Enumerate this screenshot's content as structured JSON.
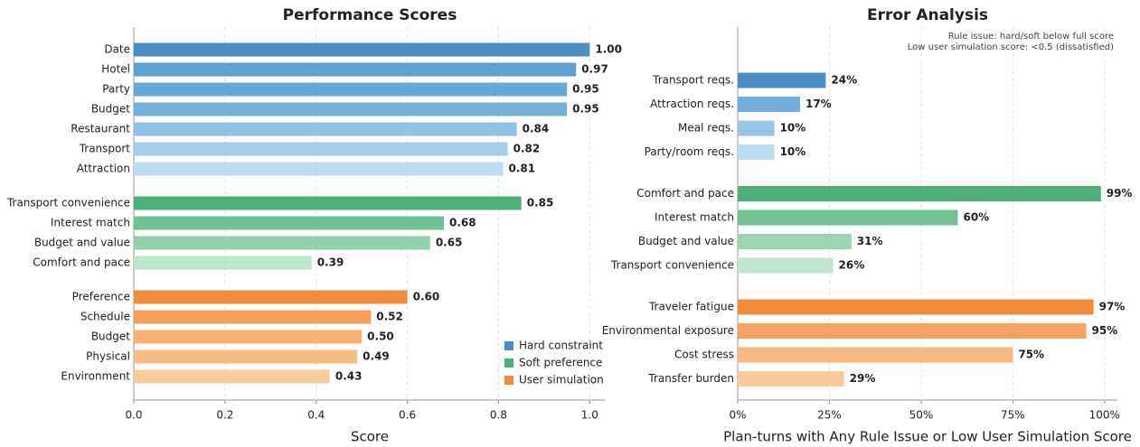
{
  "chart_data": [
    {
      "type": "bar",
      "orientation": "horizontal",
      "title": "Performance Scores",
      "xlabel": "Score",
      "xlim": [
        0,
        1.035
      ],
      "xticks": [
        {
          "value": 0,
          "label": "0.0"
        },
        0.2,
        0.4,
        0.6,
        0.8,
        {
          "value": 1,
          "label": "1.0"
        }
      ],
      "grid": true,
      "legend": "lower right",
      "groups": [
        {
          "name": "Hard constraint",
          "color": "#4a8ec6",
          "categories": [
            "Date",
            "Hotel",
            "Party",
            "Budget",
            "Restaurant",
            "Transport",
            "Attraction"
          ],
          "values": [
            1.0,
            0.97,
            0.95,
            0.95,
            0.84,
            0.82,
            0.81
          ],
          "value_labels": [
            "1.00",
            "0.97",
            "0.95",
            "0.95",
            "0.84",
            "0.82",
            "0.81"
          ],
          "colors": [
            "#4a8ec6",
            "#5f9fd1",
            "#6aa8d6",
            "#74b0da",
            "#92c2e3",
            "#a5cce8",
            "#bcdcf0"
          ]
        },
        {
          "name": "Soft preference",
          "color": "#4caf78",
          "categories": [
            "Transport convenience",
            "Interest match",
            "Budget and value",
            "Comfort and pace"
          ],
          "values": [
            0.85,
            0.68,
            0.65,
            0.39
          ],
          "value_labels": [
            "0.85",
            "0.68",
            "0.65",
            "0.39"
          ],
          "colors": [
            "#4caf78",
            "#6fc393",
            "#92d2aa",
            "#bde6cc"
          ]
        },
        {
          "name": "User simulation",
          "color": "#f08c3c",
          "categories": [
            "Preference",
            "Schedule",
            "Budget",
            "Physical",
            "Environment"
          ],
          "values": [
            0.6,
            0.52,
            0.5,
            0.49,
            0.43
          ],
          "value_labels": [
            "0.60",
            "0.52",
            "0.50",
            "0.49",
            "0.43"
          ],
          "colors": [
            "#f08c3c",
            "#f2a05a",
            "#f4b173",
            "#f6be87",
            "#f8cd9c"
          ]
        }
      ]
    },
    {
      "type": "bar",
      "orientation": "horizontal",
      "title": "Error Analysis",
      "xlabel": "Plan-turns with Any Rule Issue or Low User Simulation Score",
      "annotations": [
        "Rule issue: hard/soft below full score",
        "Low user simulation score: <0.5 (dissatisfied)"
      ],
      "xlim": [
        0,
        103.5
      ],
      "xticks": [
        {
          "value": 0,
          "label": "0%"
        },
        {
          "value": 25,
          "label": "25%"
        },
        {
          "value": 50,
          "label": "50%"
        },
        {
          "value": 75,
          "label": "75%"
        },
        {
          "value": 100,
          "label": "100%"
        }
      ],
      "grid": true,
      "groups": [
        {
          "categories": [
            "Transport reqs.",
            "Attraction reqs.",
            "Meal reqs.",
            "Party/room reqs."
          ],
          "values": [
            24,
            17,
            10,
            10
          ],
          "value_labels": [
            "24%",
            "17%",
            "10%",
            "10%"
          ],
          "colors": [
            "#4a8ec6",
            "#72addb",
            "#98c4e5",
            "#bcdcf0"
          ]
        },
        {
          "categories": [
            "Comfort and pace",
            "Interest match",
            "Budget and value",
            "Transport convenience"
          ],
          "values": [
            99,
            60,
            31,
            26
          ],
          "value_labels": [
            "99%",
            "60%",
            "31%",
            "26%"
          ],
          "colors": [
            "#4caf78",
            "#71c394",
            "#9bd4b0",
            "#c0e6d0"
          ]
        },
        {
          "categories": [
            "Traveler fatigue",
            "Environmental exposure",
            "Cost stress",
            "Transfer burden"
          ],
          "values": [
            97,
            95,
            75,
            29
          ],
          "value_labels": [
            "97%",
            "95%",
            "75%",
            "29%"
          ],
          "colors": [
            "#f08c3c",
            "#f3a361",
            "#f6b87f",
            "#f8cb99"
          ]
        }
      ]
    }
  ]
}
